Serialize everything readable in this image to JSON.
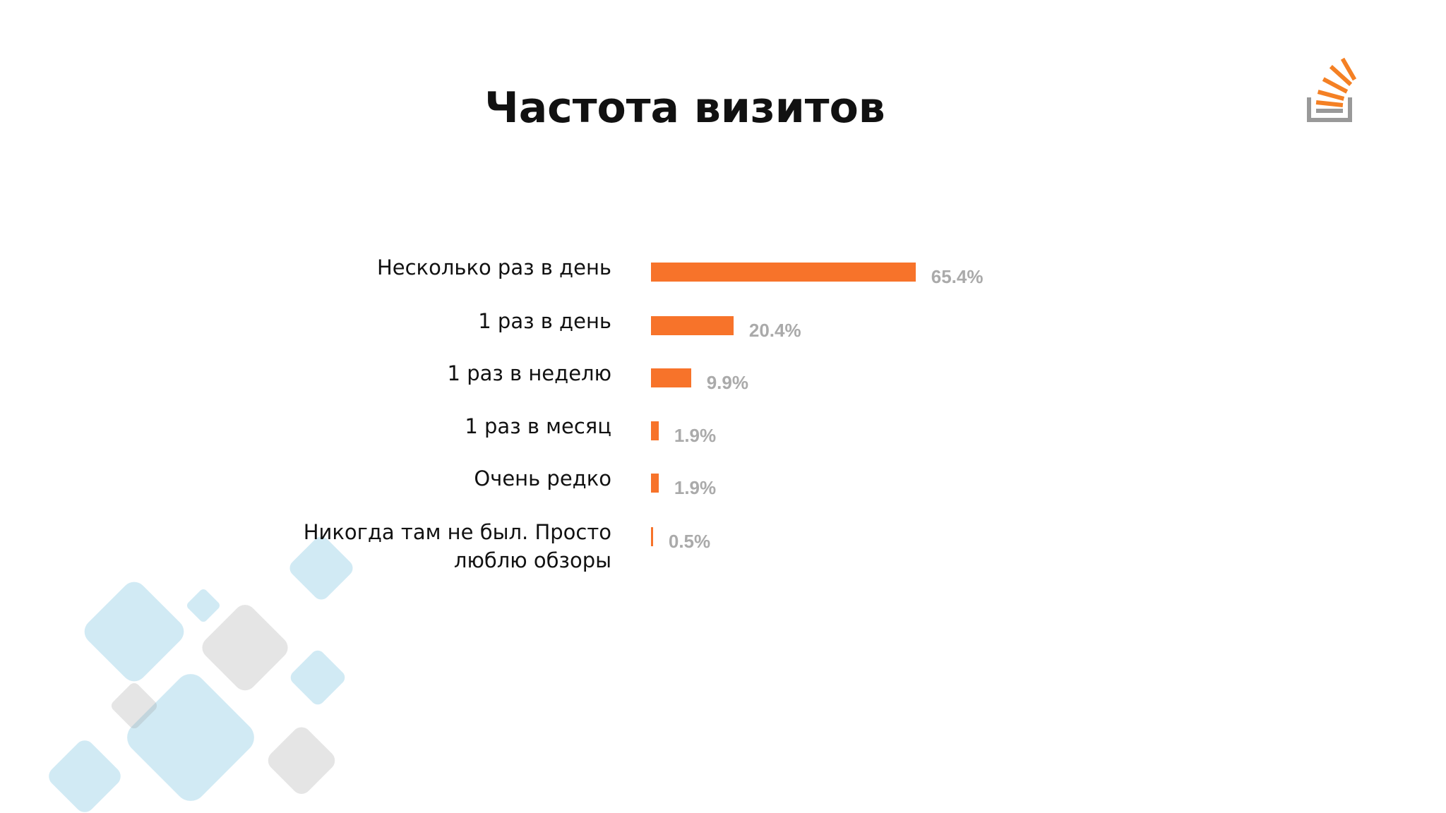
{
  "chart_data": {
    "type": "bar",
    "title": "Частота визитов",
    "categories": [
      "Несколько раз в день",
      "1 раз в день",
      "1 раз в неделю",
      "1 раз в месяц",
      "Очень редко",
      "Никогда там не был. Просто люблю обзоры"
    ],
    "values": [
      65.4,
      20.4,
      9.9,
      1.9,
      1.9,
      0.5
    ],
    "value_labels": [
      "65.4%",
      "20.4%",
      "9.9%",
      "1.9%",
      "1.9%",
      "0.5%"
    ],
    "color": "#f7732a"
  }
}
